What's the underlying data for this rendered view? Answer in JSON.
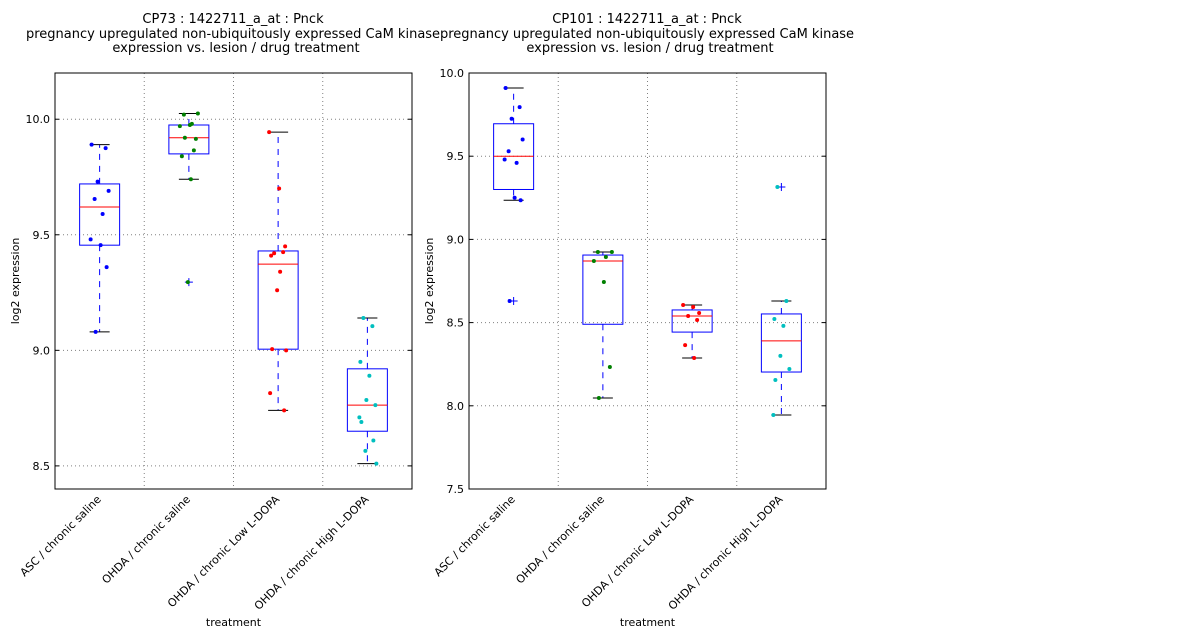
{
  "chart_data": [
    {
      "type": "box",
      "title_lines": [
        "CP73 : 1422711_a_at : Pnck",
        "pregnancy upregulated non-ubiquitously expressed CaM kinase",
        "expression vs. lesion / drug treatment"
      ],
      "xlabel": "treatment",
      "ylabel": "log2 expression",
      "ylim": [
        8.4,
        10.2
      ],
      "yticks": [
        8.5,
        9.0,
        9.5,
        10.0
      ],
      "ytick_labels": [
        "8.5",
        "9.0",
        "9.5",
        "10.0"
      ],
      "grid": true,
      "categories": [
        "ASC / chronic saline",
        "OHDA / chronic saline",
        "OHDA / chronic Low L-DOPA",
        "OHDA / chronic High L-DOPA"
      ],
      "point_colors": [
        "#0000ff",
        "#008000",
        "#ff0000",
        "#00bfbf"
      ],
      "boxes": [
        {
          "whislo": 9.08,
          "q1": 9.455,
          "med": 9.62,
          "q3": 9.72,
          "whishi": 9.89,
          "fliers": []
        },
        {
          "whislo": 9.74,
          "q1": 9.85,
          "med": 9.92,
          "q3": 9.975,
          "whishi": 10.025,
          "fliers": [
            9.295
          ]
        },
        {
          "whislo": 8.74,
          "q1": 9.005,
          "med": 9.373,
          "q3": 9.43,
          "whishi": 9.944,
          "fliers": []
        },
        {
          "whislo": 8.51,
          "q1": 8.65,
          "med": 8.763,
          "q3": 8.92,
          "whishi": 9.14,
          "fliers": []
        }
      ],
      "points": [
        [
          9.89,
          9.875,
          9.73,
          9.69,
          9.655,
          9.59,
          9.48,
          9.455,
          9.36,
          9.08
        ],
        [
          10.025,
          10.02,
          9.98,
          9.97,
          9.975,
          9.915,
          9.92,
          9.865,
          9.84,
          9.74,
          9.295
        ],
        [
          9.944,
          9.7,
          9.45,
          9.42,
          9.425,
          9.41,
          9.34,
          9.26,
          9.0,
          9.005,
          8.815,
          8.74
        ],
        [
          9.14,
          9.105,
          8.95,
          8.89,
          8.785,
          8.763,
          8.69,
          8.71,
          8.61,
          8.565,
          8.51
        ]
      ]
    },
    {
      "type": "box",
      "title_lines": [
        "CP101 : 1422711_a_at : Pnck",
        "pregnancy upregulated non-ubiquitously expressed CaM kinase",
        "expression vs. lesion / drug treatment"
      ],
      "xlabel": "treatment",
      "ylabel": "log2 expression",
      "ylim": [
        7.5,
        10.0
      ],
      "yticks": [
        7.5,
        8.0,
        8.5,
        9.0,
        9.5,
        10.0
      ],
      "ytick_labels": [
        "7.5",
        "8.0",
        "8.5",
        "9.0",
        "9.5",
        "10.0"
      ],
      "grid": true,
      "categories": [
        "ASC / chronic saline",
        "OHDA / chronic saline",
        "OHDA / chronic Low L-DOPA",
        "OHDA / chronic High L-DOPA"
      ],
      "point_colors": [
        "#0000ff",
        "#008000",
        "#ff0000",
        "#00bfbf"
      ],
      "boxes": [
        {
          "whislo": 9.235,
          "q1": 9.3,
          "med": 9.5,
          "q3": 9.695,
          "whishi": 9.91,
          "fliers": [
            8.63
          ]
        },
        {
          "whislo": 8.047,
          "q1": 8.49,
          "med": 8.87,
          "q3": 8.906,
          "whishi": 8.924,
          "fliers": []
        },
        {
          "whislo": 8.287,
          "q1": 8.443,
          "med": 8.54,
          "q3": 8.576,
          "whishi": 8.606,
          "fliers": []
        },
        {
          "whislo": 7.945,
          "q1": 8.203,
          "med": 8.39,
          "q3": 8.552,
          "whishi": 8.63,
          "fliers": [
            9.315
          ]
        }
      ],
      "points": [
        [
          9.91,
          9.795,
          9.725,
          9.6,
          9.53,
          9.46,
          9.48,
          9.25,
          9.235,
          8.63
        ],
        [
          8.924,
          8.924,
          8.894,
          8.87,
          8.744,
          8.233,
          8.047
        ],
        [
          8.606,
          8.594,
          8.558,
          8.54,
          8.516,
          8.365,
          8.287
        ],
        [
          9.315,
          8.63,
          8.522,
          8.48,
          8.3,
          8.221,
          8.155,
          7.945
        ]
      ]
    }
  ]
}
